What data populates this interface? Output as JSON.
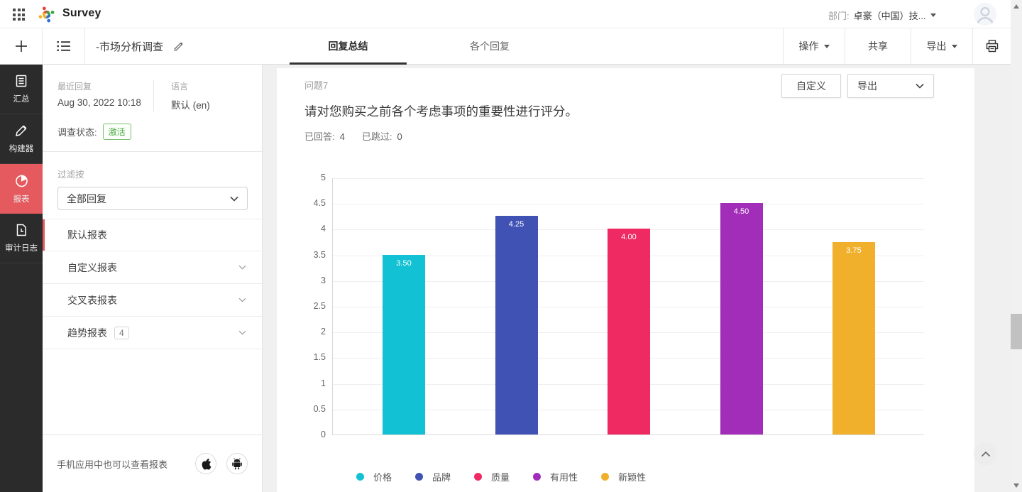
{
  "topbar": {
    "app_name": "Survey",
    "department_label": "部门:",
    "department_value": "卓豪（中国）技..."
  },
  "toolbar": {
    "survey_title": "-市场分析调查",
    "tabs": [
      {
        "label": "回复总结",
        "active": true
      },
      {
        "label": "各个回复",
        "active": false
      }
    ],
    "operations_label": "操作",
    "share_label": "共享",
    "export_label": "导出"
  },
  "sidebar": {
    "items": [
      {
        "label": "汇总",
        "icon": "summary-icon",
        "active": false
      },
      {
        "label": "构建器",
        "icon": "builder-icon",
        "active": false
      },
      {
        "label": "报表",
        "icon": "reports-icon",
        "active": true
      },
      {
        "label": "审计日志",
        "icon": "audit-log-icon",
        "active": false
      }
    ]
  },
  "panel": {
    "recent_label": "最近回复",
    "recent_value": "Aug 30, 2022 10:18",
    "language_label": "语言",
    "language_value": "默认 (en)",
    "status_label": "调查状态:",
    "status_value": "激活",
    "filter_label": "过滤按",
    "filter_value": "全部回复",
    "reports": [
      {
        "label": "默认报表",
        "selected": true
      },
      {
        "label": "自定义报表",
        "expandable": true
      },
      {
        "label": "交叉表报表",
        "expandable": true
      },
      {
        "label": "趋势报表",
        "badge": "4",
        "expandable": true
      }
    ],
    "mobile_note": "手机应用中也可以查看报表"
  },
  "main": {
    "question_no": "问题7",
    "customize_label": "自定义",
    "export_label": "导出",
    "question_title": "请对您购买之前各个考虑事项的重要性进行评分。",
    "answered_label": "已回答:",
    "answered_value": "4",
    "skipped_label": "已跳过:",
    "skipped_value": "0"
  },
  "chart_data": {
    "type": "bar",
    "categories": [
      "价格",
      "品牌",
      "质量",
      "有用性",
      "新颖性"
    ],
    "values": [
      3.5,
      4.25,
      4.0,
      4.5,
      3.75
    ],
    "value_labels": [
      "3.50",
      "4.25",
      "4.00",
      "4.50",
      "3.75"
    ],
    "colors": [
      "#12c2d4",
      "#4053b4",
      "#ef2a62",
      "#a22db8",
      "#f0b02c"
    ],
    "title": "请对您购买之前各个考虑事项的重要性进行评分。",
    "xlabel": "",
    "ylabel": "",
    "ylim": [
      0,
      5
    ],
    "ytick_step": 0.5,
    "grid": true,
    "legend_position": "bottom"
  },
  "colors": {
    "accent_red": "#e45a5e",
    "status_green": "#47a83c",
    "tab_underline": "#333333"
  }
}
